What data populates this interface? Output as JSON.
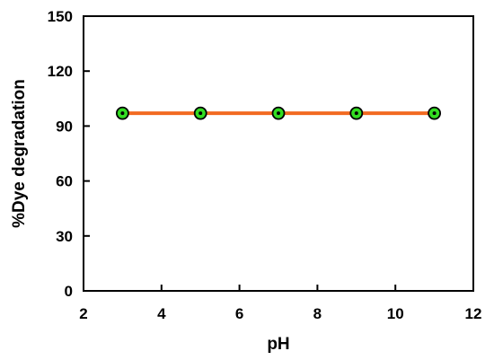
{
  "chart_data": {
    "type": "line",
    "title": "",
    "xlabel": "pH",
    "ylabel": "%Dye degradation",
    "xlim": [
      2,
      12
    ],
    "ylim": [
      0,
      150
    ],
    "xticks": [
      2,
      4,
      6,
      8,
      10,
      12
    ],
    "yticks": [
      0,
      30,
      60,
      90,
      120,
      150
    ],
    "grid": false,
    "series": [
      {
        "x": [
          3,
          5,
          7,
          9,
          11
        ],
        "y": [
          97,
          97,
          97,
          97,
          97
        ],
        "line_color": "#f26a21",
        "marker_fill": "#33dd22",
        "marker_edge": "#000000"
      }
    ]
  }
}
